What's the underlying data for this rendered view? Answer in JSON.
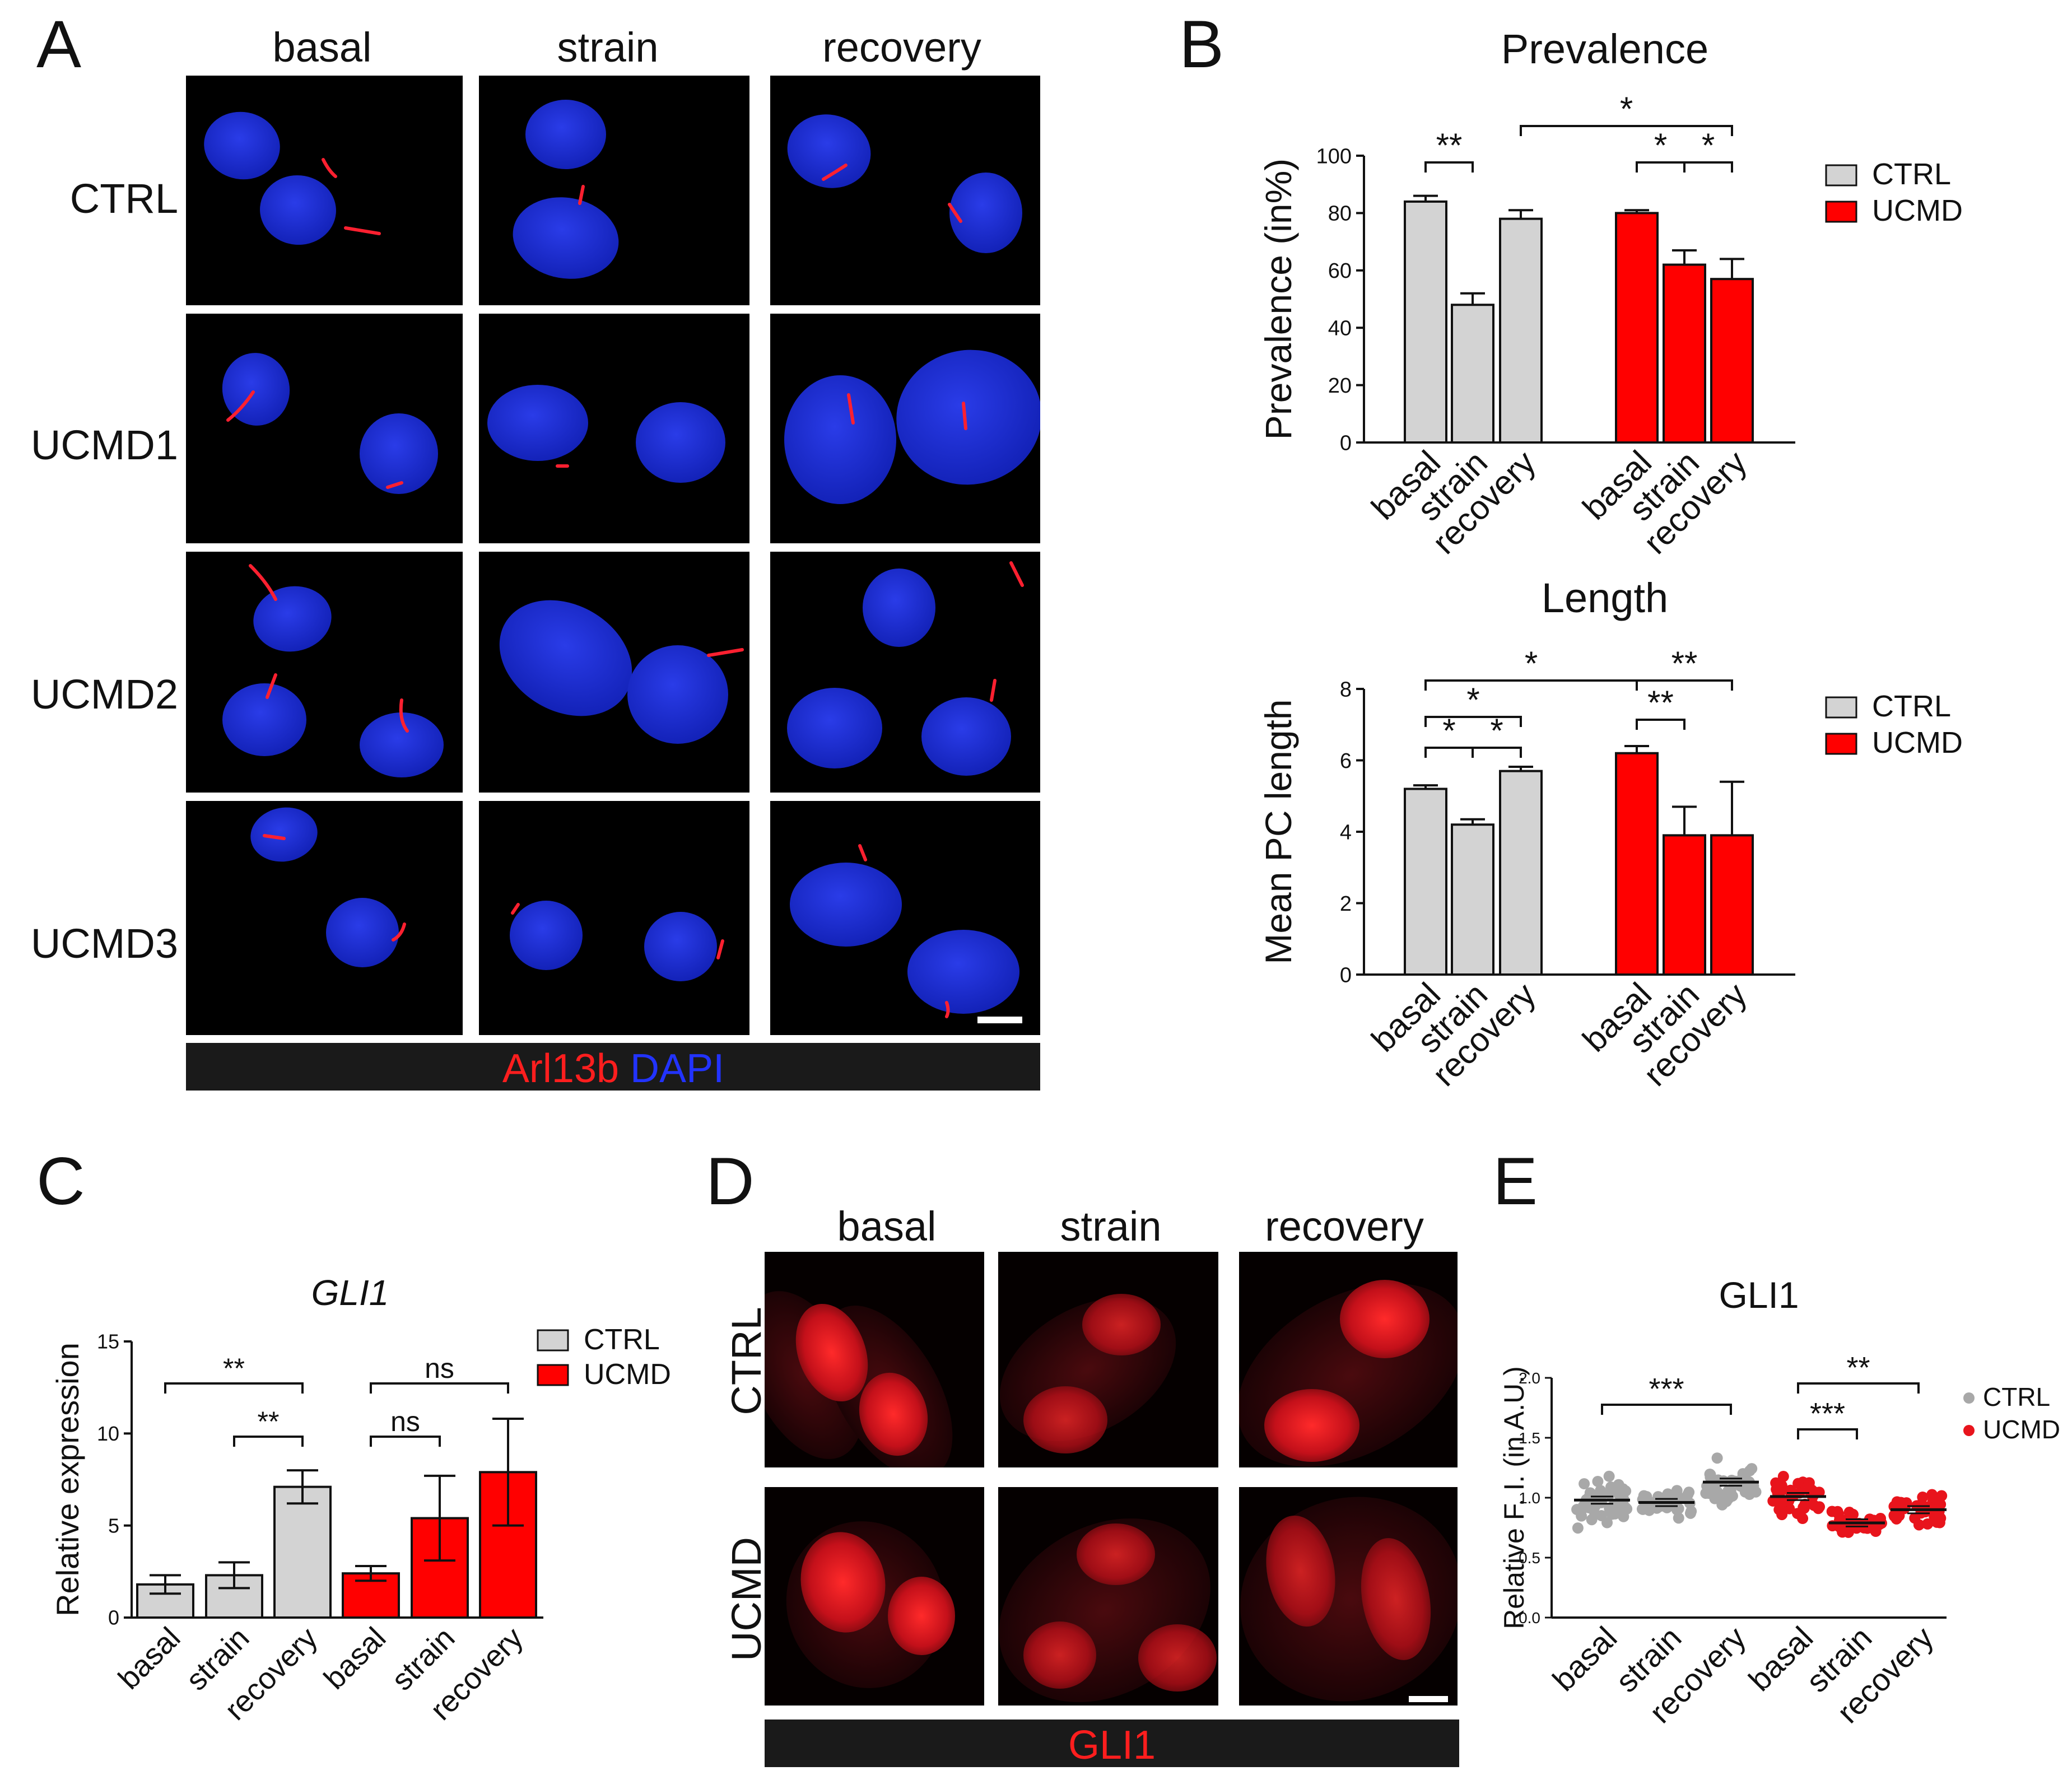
{
  "panel_letters": {
    "a": "A",
    "b": "B",
    "c": "C",
    "d": "D",
    "e": "E"
  },
  "panel_a": {
    "columns": [
      "basal",
      "strain",
      "recovery"
    ],
    "rows": [
      "CTRL",
      "UCMD1",
      "UCMD2",
      "UCMD3"
    ],
    "caption_red": "Arl13b",
    "caption_blue": "DAPI",
    "colors": {
      "nucleus": "#1c2fd8",
      "cilium": "#ff2030",
      "background": "#000000"
    }
  },
  "panel_d": {
    "columns": [
      "basal",
      "strain",
      "recovery"
    ],
    "rows": [
      "CTRL",
      "UCMD"
    ],
    "caption": "GLI1",
    "colors": {
      "stain": "#e0141e",
      "background": "#050000"
    }
  },
  "chart_data": [
    {
      "id": "prevalence",
      "type": "bar",
      "title": "Prevalence",
      "ylabel": "Prevalence (in%)",
      "ylim": [
        0,
        100
      ],
      "yticks": [
        "0",
        "20",
        "40",
        "60",
        "80",
        "100"
      ],
      "categories": [
        "basal",
        "strain",
        "recovery",
        "basal",
        "strain",
        "recovery"
      ],
      "groups": [
        "CTRL",
        "CTRL",
        "CTRL",
        "UCMD",
        "UCMD",
        "UCMD"
      ],
      "values": [
        84,
        48,
        78,
        80,
        62,
        57
      ],
      "errors": [
        2,
        4,
        3,
        1,
        5,
        7
      ],
      "legend": [
        "CTRL",
        "UCMD"
      ],
      "significance": [
        {
          "from": 0,
          "to": 1,
          "label": "**"
        },
        {
          "from": 2,
          "to": 5,
          "label": "*"
        },
        {
          "from": 3,
          "to": 4,
          "label": "*"
        },
        {
          "from": 4,
          "to": 5,
          "label": "*"
        }
      ]
    },
    {
      "id": "length",
      "type": "bar",
      "title": "Length",
      "ylabel": "Mean PC length",
      "ylim": [
        0,
        8
      ],
      "yticks": [
        "0",
        "2",
        "4",
        "6",
        "8"
      ],
      "categories": [
        "basal",
        "strain",
        "recovery",
        "basal",
        "strain",
        "recovery"
      ],
      "groups": [
        "CTRL",
        "CTRL",
        "CTRL",
        "UCMD",
        "UCMD",
        "UCMD"
      ],
      "values": [
        5.2,
        4.2,
        5.7,
        6.2,
        3.9,
        3.9
      ],
      "errors": [
        0.1,
        0.15,
        0.12,
        0.2,
        0.8,
        1.5
      ],
      "legend": [
        "CTRL",
        "UCMD"
      ],
      "significance": [
        {
          "from": 0,
          "to": 3,
          "label": "*"
        },
        {
          "from": 0,
          "to": 2,
          "label": "*"
        },
        {
          "from": 0,
          "to": 1,
          "label": "*"
        },
        {
          "from": 1,
          "to": 2,
          "label": "*"
        },
        {
          "from": 3,
          "to": 5,
          "label": "**"
        },
        {
          "from": 3,
          "to": 4,
          "label": "**"
        }
      ]
    },
    {
      "id": "gli1_expression",
      "type": "bar",
      "title": "GLI1",
      "ylabel": "Relative  expression",
      "ylim": [
        0,
        15
      ],
      "yticks": [
        "0",
        "5",
        "10",
        "15"
      ],
      "categories": [
        "basal",
        "strain",
        "recovery",
        "basal",
        "strain",
        "recovery"
      ],
      "groups": [
        "CTRL",
        "CTRL",
        "CTRL",
        "UCMD",
        "UCMD",
        "UCMD"
      ],
      "values": [
        1.8,
        2.3,
        7.1,
        2.4,
        5.4,
        7.9
      ],
      "errors": [
        0.5,
        0.7,
        0.9,
        0.4,
        2.3,
        2.9
      ],
      "legend": [
        "CTRL",
        "UCMD"
      ],
      "significance": [
        {
          "from": 0,
          "to": 2,
          "label": "**"
        },
        {
          "from": 1,
          "to": 2,
          "label": "**"
        },
        {
          "from": 3,
          "to": 5,
          "label": "ns"
        },
        {
          "from": 3,
          "to": 4,
          "label": "ns"
        }
      ]
    },
    {
      "id": "gli1_fi",
      "type": "scatter",
      "title": "GLI1",
      "ylabel": "Relative F. I.  (in A.U.)",
      "ylim": [
        0,
        2.0
      ],
      "yticks": [
        "0.0",
        "0.5",
        "1.0",
        "1.5",
        "2.0"
      ],
      "categories": [
        "basal",
        "strain",
        "recovery",
        "basal",
        "strain",
        "recovery"
      ],
      "groups": [
        "CTRL",
        "CTRL",
        "CTRL",
        "UCMD",
        "UCMD",
        "UCMD"
      ],
      "means": [
        0.98,
        0.96,
        1.13,
        1.01,
        0.79,
        0.9
      ],
      "spread": [
        0.16,
        0.1,
        0.14,
        0.13,
        0.09,
        0.1
      ],
      "n_points": [
        45,
        35,
        40,
        40,
        35,
        40
      ],
      "legend": [
        "CTRL",
        "UCMD"
      ],
      "significance": [
        {
          "from": 0,
          "to": 2,
          "label": "***"
        },
        {
          "from": 3,
          "to": 5,
          "label": "**"
        },
        {
          "from": 3,
          "to": 4,
          "label": "***"
        }
      ]
    }
  ],
  "colors": {
    "ctrl": "#d3d3d3",
    "ucmd": "#ff0000",
    "ctrl_dot": "#a8a8a8",
    "ucmd_dot": "#e8141c",
    "axis": "#111111"
  }
}
